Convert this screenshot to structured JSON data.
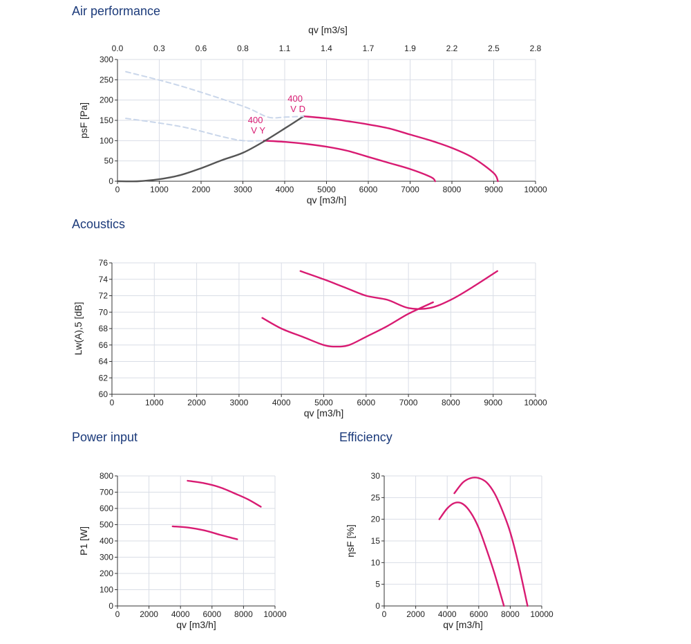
{
  "sections": {
    "air": "Air performance",
    "acoustics": "Acoustics",
    "power": "Power input",
    "efficiency": "Efficiency"
  },
  "colors": {
    "curve": "#d81b72",
    "system": "#555555",
    "dashed": "#c9d6ea",
    "grid": "#d9dde6",
    "title": "#1b3a7a"
  },
  "chart_data": [
    {
      "id": "air",
      "type": "line",
      "title": "Air performance",
      "xlabel": "qv [m3/h]",
      "x2label": "qv [m3/s]",
      "ylabel": "psF [Pa]",
      "xlim": [
        0,
        10000
      ],
      "ylim": [
        0,
        300
      ],
      "x_ticks": [
        "0",
        "1000",
        "2000",
        "3000",
        "4000",
        "5000",
        "6000",
        "7000",
        "8000",
        "9000",
        "10000"
      ],
      "x2_ticks": [
        "0.0",
        "0.3",
        "0.6",
        "0.8",
        "1.1",
        "1.4",
        "1.7",
        "1.9",
        "2.2",
        "2.5",
        "2.8"
      ],
      "y_ticks": [
        "0",
        "50",
        "100",
        "150",
        "200",
        "250",
        "300"
      ],
      "curve_labels": [
        {
          "name": "400",
          "mode": "V D"
        },
        {
          "name": "400",
          "mode": "V Y"
        }
      ],
      "series": [
        {
          "key": "VD",
          "points": [
            [
              4450,
              160
            ],
            [
              5000,
              155
            ],
            [
              5500,
              148
            ],
            [
              6000,
              140
            ],
            [
              6500,
              130
            ],
            [
              7000,
              115
            ],
            [
              7500,
              100
            ],
            [
              8000,
              82
            ],
            [
              8500,
              58
            ],
            [
              9000,
              20
            ],
            [
              9100,
              0
            ]
          ]
        },
        {
          "key": "VY",
          "points": [
            [
              3500,
              100
            ],
            [
              4000,
              97
            ],
            [
              4500,
              92
            ],
            [
              5000,
              85
            ],
            [
              5500,
              75
            ],
            [
              6000,
              60
            ],
            [
              6500,
              45
            ],
            [
              7000,
              30
            ],
            [
              7500,
              10
            ],
            [
              7600,
              0
            ]
          ]
        },
        {
          "key": "system",
          "points": [
            [
              0,
              0
            ],
            [
              500,
              0
            ],
            [
              1000,
              5
            ],
            [
              1500,
              15
            ],
            [
              2000,
              32
            ],
            [
              2500,
              52
            ],
            [
              3000,
              70
            ],
            [
              3500,
              98
            ],
            [
              4000,
              130
            ],
            [
              4450,
              160
            ]
          ]
        },
        {
          "key": "VD_ext",
          "dashed": true,
          "points": [
            [
              200,
              270
            ],
            [
              1500,
              235
            ],
            [
              3000,
              185
            ],
            [
              3600,
              158
            ],
            [
              4000,
              158
            ],
            [
              4450,
              160
            ]
          ]
        },
        {
          "key": "VY_ext",
          "dashed": true,
          "points": [
            [
              200,
              155
            ],
            [
              1500,
              135
            ],
            [
              2500,
              110
            ],
            [
              3000,
              100
            ],
            [
              3500,
              100
            ]
          ]
        }
      ]
    },
    {
      "id": "acoustics",
      "type": "line",
      "title": "Acoustics",
      "xlabel": "qv [m3/h]",
      "ylabel": "Lw(A),5 [dB]",
      "xlim": [
        0,
        10000
      ],
      "ylim": [
        60,
        76
      ],
      "x_ticks": [
        "0",
        "1000",
        "2000",
        "3000",
        "4000",
        "5000",
        "6000",
        "7000",
        "8000",
        "9000",
        "10000"
      ],
      "y_ticks": [
        "60",
        "62",
        "64",
        "66",
        "68",
        "70",
        "72",
        "74",
        "76"
      ],
      "series": [
        {
          "key": "VD",
          "points": [
            [
              4450,
              75
            ],
            [
              5000,
              74
            ],
            [
              5500,
              73
            ],
            [
              6000,
              72
            ],
            [
              6500,
              71.5
            ],
            [
              7000,
              70.5
            ],
            [
              7500,
              70.5
            ],
            [
              8000,
              71.5
            ],
            [
              8500,
              73
            ],
            [
              9100,
              75
            ]
          ]
        },
        {
          "key": "VY",
          "points": [
            [
              3550,
              69.3
            ],
            [
              4000,
              68
            ],
            [
              4500,
              67
            ],
            [
              5000,
              66
            ],
            [
              5300,
              65.8
            ],
            [
              5600,
              66
            ],
            [
              6000,
              67
            ],
            [
              6500,
              68.3
            ],
            [
              7000,
              69.8
            ],
            [
              7580,
              71.2
            ]
          ]
        }
      ]
    },
    {
      "id": "power",
      "type": "line",
      "title": "Power input",
      "xlabel": "qv [m3/h]",
      "ylabel": "P1 [W]",
      "xlim": [
        0,
        10000
      ],
      "ylim": [
        0,
        800
      ],
      "x_ticks": [
        "0",
        "2000",
        "4000",
        "6000",
        "8000",
        "10000"
      ],
      "y_ticks": [
        "0",
        "100",
        "200",
        "300",
        "400",
        "500",
        "600",
        "700",
        "800"
      ],
      "series": [
        {
          "key": "VD",
          "points": [
            [
              4450,
              770
            ],
            [
              5500,
              755
            ],
            [
              6500,
              730
            ],
            [
              7500,
              690
            ],
            [
              8300,
              655
            ],
            [
              9100,
              610
            ]
          ]
        },
        {
          "key": "VY",
          "points": [
            [
              3500,
              490
            ],
            [
              4500,
              482
            ],
            [
              5500,
              465
            ],
            [
              6500,
              438
            ],
            [
              7000,
              425
            ],
            [
              7600,
              410
            ]
          ]
        }
      ]
    },
    {
      "id": "efficiency",
      "type": "line",
      "title": "Efficiency",
      "xlabel": "qv [m3/h]",
      "ylabel": "ηsF [%]",
      "xlim": [
        0,
        10000
      ],
      "ylim": [
        0,
        30
      ],
      "x_ticks": [
        "0",
        "2000",
        "4000",
        "6000",
        "8000",
        "10000"
      ],
      "y_ticks": [
        "0",
        "5",
        "10",
        "15",
        "20",
        "25",
        "30"
      ],
      "series": [
        {
          "key": "VD",
          "points": [
            [
              4450,
              26
            ],
            [
              5000,
              28.5
            ],
            [
              5500,
              29.5
            ],
            [
              6000,
              29.5
            ],
            [
              6500,
              28.5
            ],
            [
              7000,
              26
            ],
            [
              7500,
              22
            ],
            [
              8000,
              17
            ],
            [
              8500,
              10
            ],
            [
              9100,
              0
            ]
          ]
        },
        {
          "key": "VY",
          "points": [
            [
              3500,
              20
            ],
            [
              4000,
              22.5
            ],
            [
              4500,
              23.8
            ],
            [
              5000,
              23.5
            ],
            [
              5500,
              21.5
            ],
            [
              6000,
              18
            ],
            [
              6500,
              13
            ],
            [
              7000,
              7.5
            ],
            [
              7600,
              0
            ]
          ]
        }
      ]
    }
  ]
}
